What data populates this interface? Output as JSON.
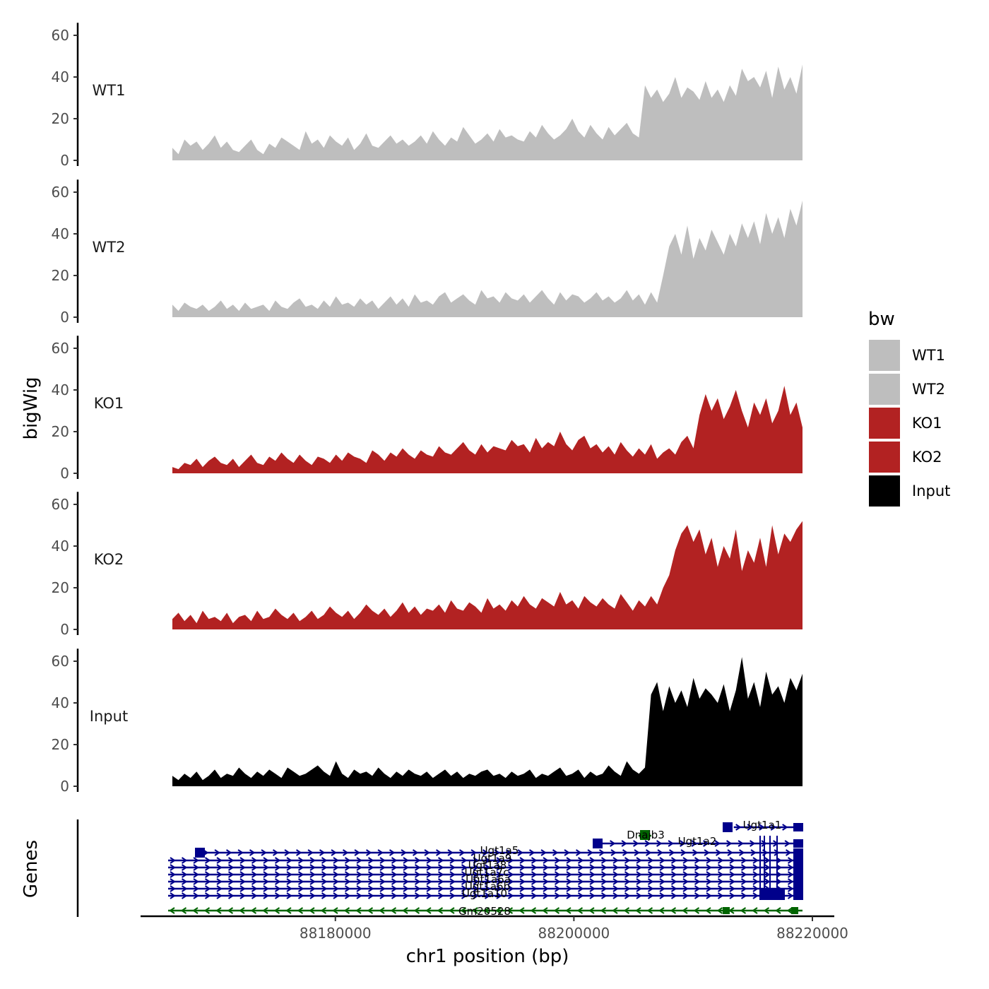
{
  "chart_data": {
    "type": "area",
    "y_axis_title": "bigWig",
    "x_axis_title": "chr1 position (bp)",
    "genes_axis_title": "Genes",
    "x_range": [
      88164000,
      88219000
    ],
    "x_ticks": [
      88180000,
      88200000,
      88220000
    ],
    "x_tick_labels": [
      "88180000",
      "88200000",
      "88220000"
    ],
    "y_range": [
      0,
      66
    ],
    "y_ticks": [
      0,
      20,
      40,
      60
    ],
    "y_tick_labels": [
      "0",
      "20",
      "40",
      "60"
    ],
    "legend_title": "bw",
    "tracks": [
      {
        "name": "WT1",
        "color": "#bebebe",
        "values": [
          6,
          3,
          10,
          7,
          9,
          5,
          8,
          12,
          6,
          9,
          5,
          4,
          7,
          10,
          5,
          3,
          8,
          6,
          11,
          9,
          7,
          5,
          14,
          8,
          10,
          6,
          12,
          9,
          7,
          11,
          5,
          8,
          13,
          7,
          6,
          9,
          12,
          8,
          10,
          7,
          9,
          12,
          8,
          14,
          10,
          7,
          11,
          9,
          16,
          12,
          8,
          10,
          13,
          9,
          15,
          11,
          12,
          10,
          9,
          14,
          11,
          17,
          13,
          10,
          12,
          15,
          20,
          14,
          11,
          17,
          13,
          10,
          16,
          12,
          15,
          18,
          13,
          11,
          36,
          30,
          34,
          28,
          32,
          40,
          30,
          35,
          33,
          29,
          38,
          30,
          34,
          28,
          36,
          31,
          44,
          38,
          40,
          35,
          43,
          30,
          45,
          34,
          40,
          32,
          46
        ]
      },
      {
        "name": "WT2",
        "color": "#bebebe",
        "values": [
          6,
          3,
          7,
          5,
          4,
          6,
          3,
          5,
          8,
          4,
          6,
          3,
          7,
          4,
          5,
          6,
          3,
          8,
          5,
          4,
          7,
          9,
          5,
          6,
          4,
          8,
          5,
          10,
          6,
          7,
          5,
          9,
          6,
          8,
          4,
          7,
          10,
          6,
          9,
          5,
          11,
          7,
          8,
          6,
          10,
          12,
          7,
          9,
          11,
          8,
          6,
          13,
          9,
          10,
          7,
          12,
          9,
          8,
          11,
          7,
          10,
          13,
          9,
          6,
          12,
          8,
          11,
          10,
          7,
          9,
          12,
          8,
          10,
          7,
          9,
          13,
          8,
          11,
          6,
          12,
          7,
          20,
          34,
          40,
          30,
          44,
          28,
          38,
          32,
          42,
          36,
          30,
          40,
          34,
          45,
          38,
          46,
          35,
          50,
          40,
          48,
          38,
          52,
          44,
          56
        ]
      },
      {
        "name": "KO1",
        "color": "#b22222",
        "values": [
          3,
          2,
          5,
          4,
          7,
          3,
          6,
          8,
          5,
          4,
          7,
          3,
          6,
          9,
          5,
          4,
          8,
          6,
          10,
          7,
          5,
          9,
          6,
          4,
          8,
          7,
          5,
          9,
          6,
          10,
          8,
          7,
          5,
          11,
          9,
          6,
          10,
          8,
          12,
          9,
          7,
          11,
          9,
          8,
          13,
          10,
          9,
          12,
          15,
          11,
          9,
          14,
          10,
          13,
          12,
          11,
          16,
          13,
          14,
          10,
          17,
          12,
          15,
          13,
          20,
          14,
          11,
          16,
          18,
          12,
          14,
          10,
          13,
          9,
          15,
          11,
          8,
          12,
          9,
          14,
          7,
          10,
          12,
          9,
          15,
          18,
          12,
          28,
          38,
          30,
          36,
          26,
          32,
          40,
          30,
          22,
          34,
          28,
          36,
          24,
          30,
          42,
          28,
          34,
          22
        ]
      },
      {
        "name": "KO2",
        "color": "#b22222",
        "values": [
          5,
          8,
          4,
          7,
          3,
          9,
          5,
          6,
          4,
          8,
          3,
          6,
          7,
          4,
          9,
          5,
          6,
          10,
          7,
          5,
          8,
          4,
          6,
          9,
          5,
          7,
          11,
          8,
          6,
          9,
          5,
          8,
          12,
          9,
          7,
          10,
          6,
          9,
          13,
          8,
          11,
          7,
          10,
          9,
          12,
          8,
          14,
          10,
          9,
          13,
          11,
          8,
          15,
          10,
          12,
          9,
          14,
          11,
          16,
          12,
          10,
          15,
          13,
          11,
          18,
          12,
          14,
          10,
          16,
          13,
          11,
          15,
          12,
          10,
          17,
          13,
          9,
          14,
          11,
          16,
          12,
          20,
          26,
          38,
          46,
          50,
          42,
          48,
          36,
          44,
          30,
          40,
          34,
          48,
          28,
          38,
          32,
          44,
          30,
          50,
          36,
          46,
          42,
          48,
          52
        ]
      },
      {
        "name": "Input",
        "color": "#000000",
        "values": [
          5,
          3,
          6,
          4,
          7,
          3,
          5,
          8,
          4,
          6,
          5,
          9,
          6,
          4,
          7,
          5,
          8,
          6,
          4,
          9,
          7,
          5,
          6,
          8,
          10,
          7,
          5,
          12,
          6,
          4,
          8,
          6,
          7,
          5,
          9,
          6,
          4,
          7,
          5,
          8,
          6,
          5,
          7,
          4,
          6,
          8,
          5,
          7,
          4,
          6,
          5,
          7,
          8,
          5,
          6,
          4,
          7,
          5,
          6,
          8,
          4,
          6,
          5,
          7,
          9,
          5,
          6,
          8,
          4,
          7,
          5,
          6,
          10,
          7,
          5,
          12,
          8,
          6,
          9,
          44,
          50,
          36,
          48,
          40,
          46,
          38,
          52,
          42,
          47,
          44,
          40,
          49,
          36,
          46,
          62,
          42,
          50,
          38,
          55,
          44,
          48,
          40,
          52,
          46,
          54
        ]
      }
    ],
    "legend": [
      "WT1",
      "WT2",
      "KO1",
      "KO2",
      "Input"
    ],
    "genes": [
      {
        "name": "Ugt1a1",
        "color": "#00008b",
        "start": 88213000,
        "end": 88219000,
        "strand": "+"
      },
      {
        "name": "Dnajb3",
        "color": "#006400",
        "start": 88205000,
        "end": 88206000,
        "strand": "-"
      },
      {
        "name": "Ugt1a2",
        "color": "#00008b",
        "start": 88201000,
        "end": 88219000,
        "strand": "+"
      },
      {
        "name": "Ugt1a5",
        "color": "#00008b",
        "start": 88166500,
        "end": 88219000,
        "strand": "+"
      },
      {
        "name": "Ugt1a9",
        "color": "#00008b",
        "start": 88164000,
        "end": 88219000,
        "strand": "+"
      },
      {
        "name": "Ugt1a8",
        "color": "#00008b",
        "start": 88164000,
        "end": 88219000,
        "strand": "+"
      },
      {
        "name": "Ugt1a7c",
        "color": "#00008b",
        "start": 88164000,
        "end": 88219000,
        "strand": "+"
      },
      {
        "name": "Ugt1a6a",
        "color": "#00008b",
        "start": 88164000,
        "end": 88219000,
        "strand": "+"
      },
      {
        "name": "Ugt1a6b",
        "color": "#00008b",
        "start": 88164000,
        "end": 88219000,
        "strand": "+"
      },
      {
        "name": "Ugt1a10",
        "color": "#00008b",
        "start": 88164000,
        "end": 88219000,
        "strand": "+"
      },
      {
        "name": "Gm20528",
        "color": "#006400",
        "start": 88164000,
        "end": 88219000,
        "strand": "-"
      }
    ]
  }
}
